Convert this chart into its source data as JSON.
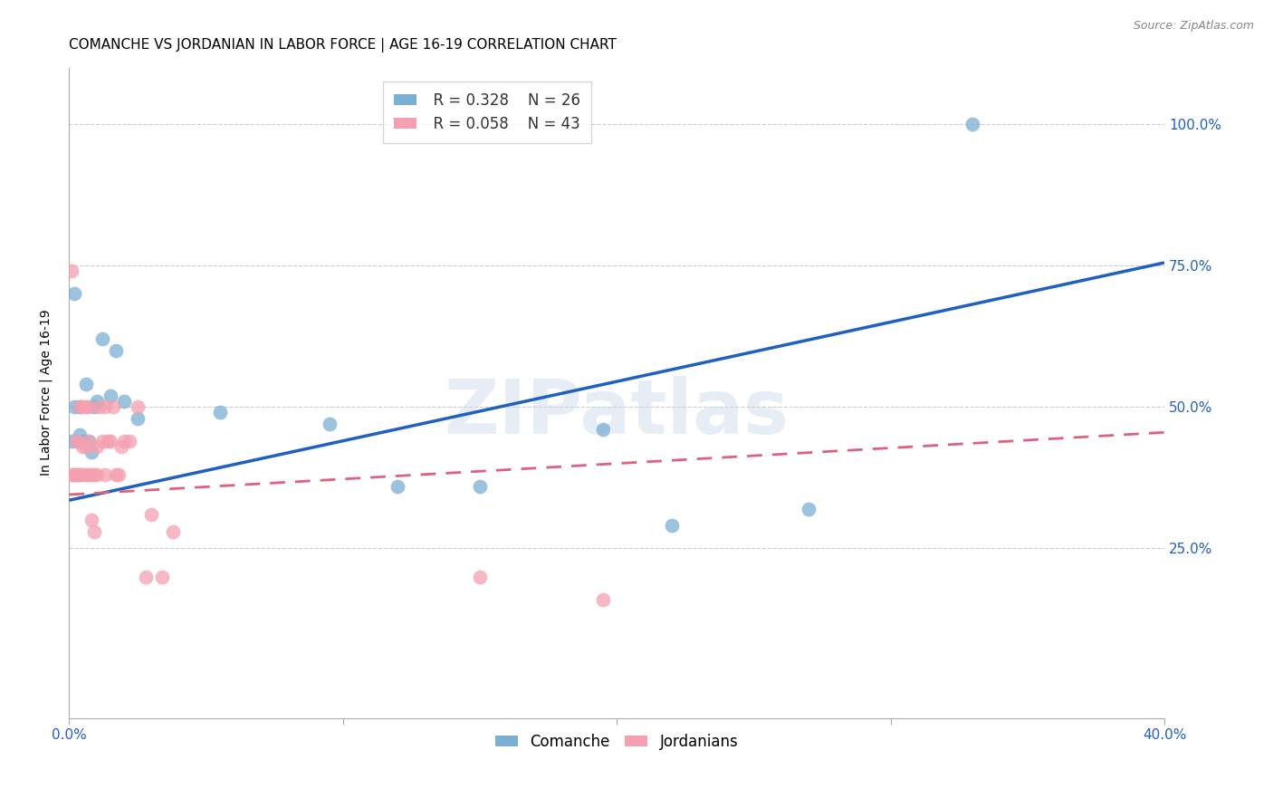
{
  "title": "COMANCHE VS JORDANIAN IN LABOR FORCE | AGE 16-19 CORRELATION CHART",
  "source": "Source: ZipAtlas.com",
  "ylabel": "In Labor Force | Age 16-19",
  "xlim": [
    0.0,
    0.4
  ],
  "ylim": [
    -0.05,
    1.1
  ],
  "x_ticks": [
    0.0,
    0.1,
    0.2,
    0.3,
    0.4
  ],
  "x_tick_labels": [
    "0.0%",
    "",
    "",
    "",
    "40.0%"
  ],
  "y_ticks": [
    0.0,
    0.25,
    0.5,
    0.75,
    1.0
  ],
  "y_tick_labels": [
    "",
    "25.0%",
    "50.0%",
    "75.0%",
    "100.0%"
  ],
  "background_color": "#ffffff",
  "grid_color": "#cccccc",
  "watermark": "ZIPatlas",
  "comanche_color": "#7bafd4",
  "jordanian_color": "#f4a0b0",
  "comanche_line_color": "#2060c0",
  "jordanian_line_color": "#e06080",
  "comanche_R": 0.328,
  "comanche_N": 26,
  "jordanian_R": 0.058,
  "jordanian_N": 43,
  "comanche_line_x": [
    0.0,
    0.4
  ],
  "comanche_line_y": [
    0.335,
    0.755
  ],
  "jordanian_line_x": [
    0.0,
    0.4
  ],
  "jordanian_line_y": [
    0.345,
    0.455
  ],
  "comanche_x": [
    0.001,
    0.002,
    0.002,
    0.003,
    0.003,
    0.004,
    0.004,
    0.005,
    0.006,
    0.007,
    0.008,
    0.009,
    0.01,
    0.012,
    0.015,
    0.017,
    0.02,
    0.025,
    0.055,
    0.095,
    0.12,
    0.15,
    0.195,
    0.22,
    0.27,
    0.33
  ],
  "comanche_y": [
    0.44,
    0.7,
    0.5,
    0.38,
    0.44,
    0.45,
    0.5,
    0.44,
    0.54,
    0.44,
    0.42,
    0.5,
    0.51,
    0.62,
    0.52,
    0.6,
    0.51,
    0.48,
    0.49,
    0.47,
    0.36,
    0.36,
    0.46,
    0.29,
    0.32,
    1.0
  ],
  "jordanian_x": [
    0.001,
    0.001,
    0.002,
    0.002,
    0.003,
    0.003,
    0.004,
    0.004,
    0.004,
    0.005,
    0.005,
    0.005,
    0.006,
    0.006,
    0.006,
    0.007,
    0.007,
    0.007,
    0.008,
    0.008,
    0.009,
    0.009,
    0.01,
    0.01,
    0.011,
    0.012,
    0.013,
    0.013,
    0.014,
    0.015,
    0.016,
    0.017,
    0.018,
    0.019,
    0.02,
    0.022,
    0.025,
    0.028,
    0.03,
    0.034,
    0.038,
    0.15,
    0.195
  ],
  "jordanian_y": [
    0.38,
    0.74,
    0.38,
    0.38,
    0.44,
    0.44,
    0.38,
    0.38,
    0.5,
    0.38,
    0.5,
    0.43,
    0.38,
    0.43,
    0.5,
    0.38,
    0.44,
    0.5,
    0.38,
    0.3,
    0.38,
    0.28,
    0.38,
    0.43,
    0.5,
    0.44,
    0.5,
    0.38,
    0.44,
    0.44,
    0.5,
    0.38,
    0.38,
    0.43,
    0.44,
    0.44,
    0.5,
    0.2,
    0.31,
    0.2,
    0.28,
    0.2,
    0.16
  ],
  "legend_R_comanche": "R = 0.328",
  "legend_N_comanche": "N = 26",
  "legend_R_jordanian": "R = 0.058",
  "legend_N_jordanian": "N = 43",
  "title_fontsize": 11,
  "axis_label_fontsize": 10,
  "tick_fontsize": 11,
  "legend_fontsize": 12
}
